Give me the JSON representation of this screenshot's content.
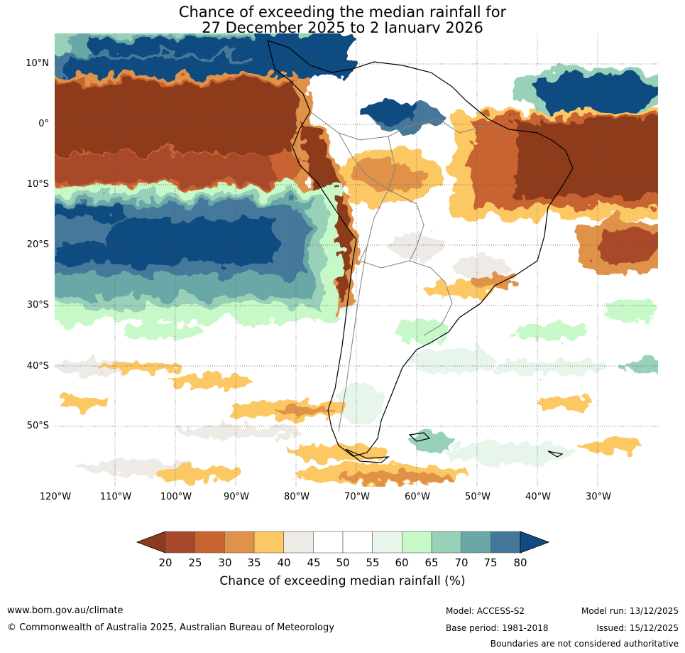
{
  "title": {
    "line1": "Chance of exceeding the median rainfall for",
    "line2": "27 December 2025 to 2 January 2026"
  },
  "map": {
    "region": "South America",
    "lat_labels": [
      "10°N",
      "0°",
      "10°S",
      "20°S",
      "30°S",
      "40°S",
      "50°S"
    ],
    "lon_labels": [
      "120°W",
      "110°W",
      "100°W",
      "90°W",
      "80°W",
      "70°W",
      "60°W",
      "50°W",
      "40°W",
      "30°W"
    ]
  },
  "colorbar": {
    "label": "Chance of exceeding median rainfall (%)",
    "ticks": [
      "20",
      "25",
      "30",
      "35",
      "40",
      "45",
      "50",
      "55",
      "60",
      "65",
      "70",
      "75",
      "80"
    ],
    "colors": [
      "#8e3a1f",
      "#a8482a",
      "#c86432",
      "#e0924a",
      "#fcc864",
      "#eeeae6",
      "#ffffff",
      "#ffffff",
      "#e8f5ea",
      "#c6f8c8",
      "#98d0b8",
      "#6aa8a8",
      "#44789a",
      "#104c80"
    ]
  },
  "footer": {
    "website": "www.bom.gov.au/climate",
    "copyright": "© Commonwealth of Australia 2025, Australian Bureau of Meteorology",
    "model": "Model: ACCESS-S2",
    "base_period": "Base period: 1981-2018",
    "model_run": "Model run: 13/12/2025",
    "issued": "Issued: 15/12/2025",
    "disclaimer": "Boundaries are not considered authoritative"
  }
}
